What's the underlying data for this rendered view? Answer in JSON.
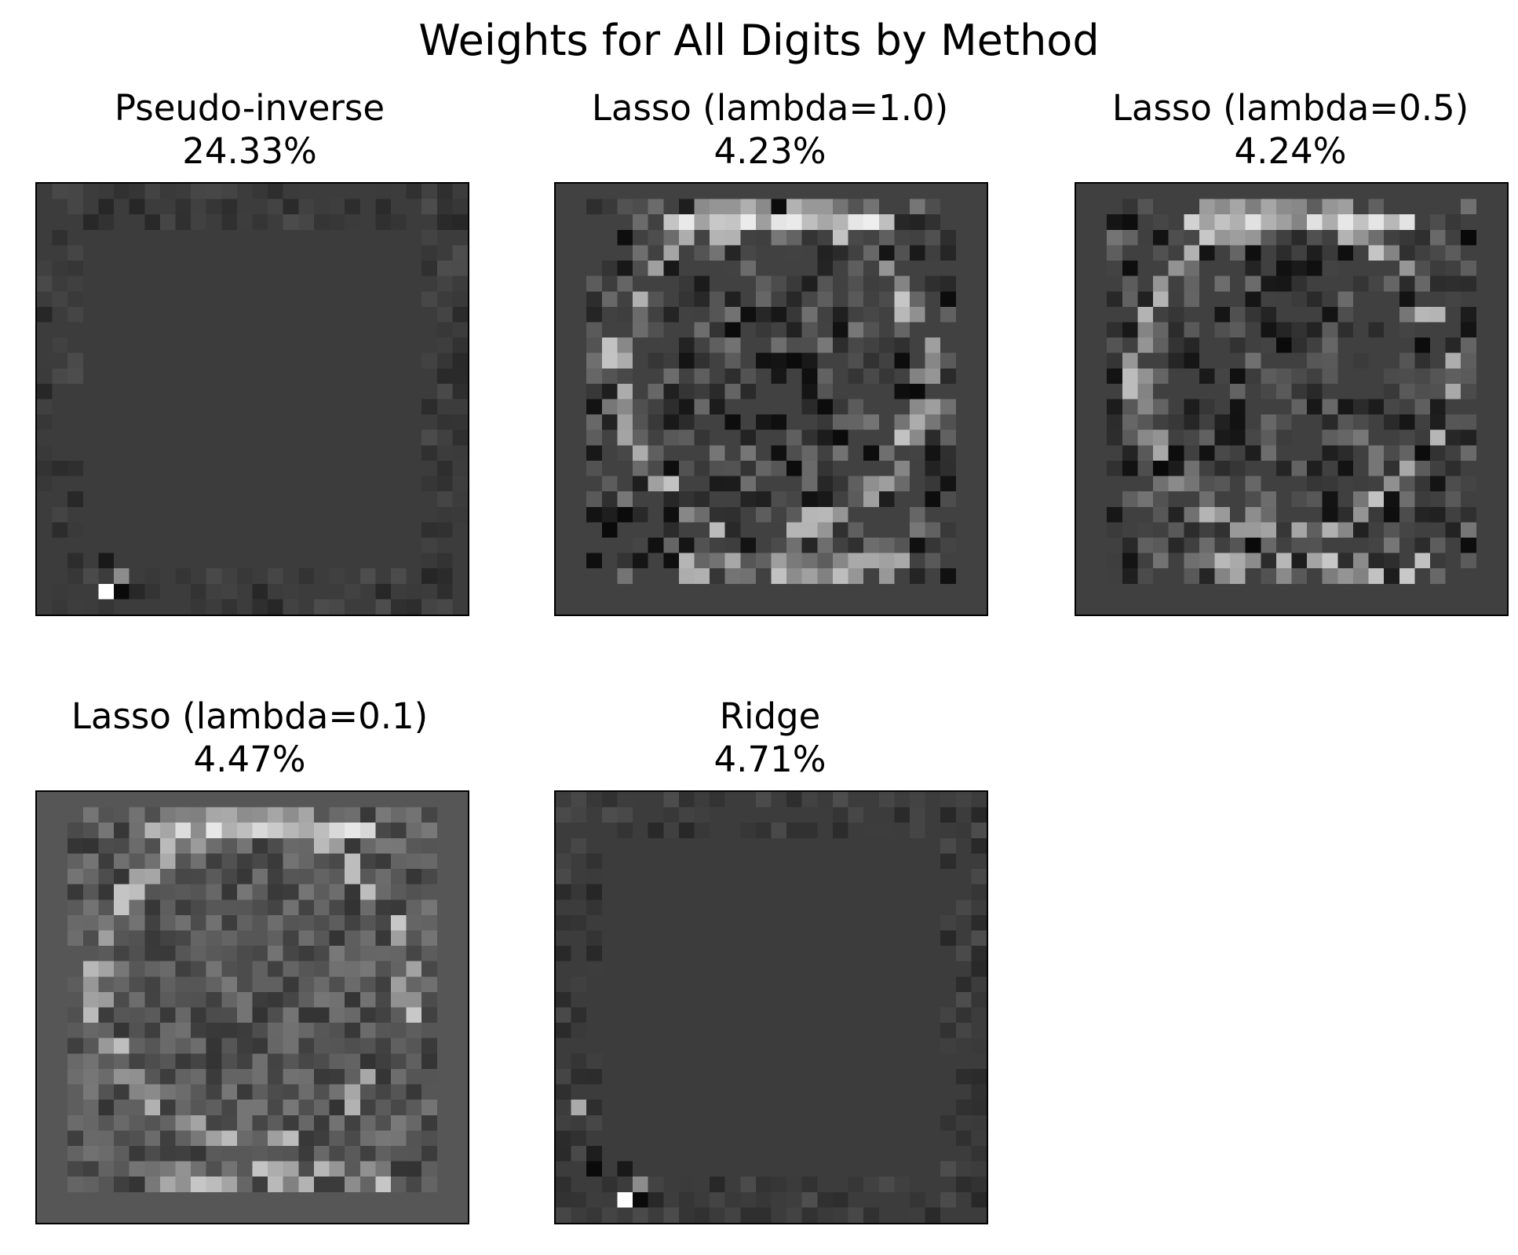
{
  "chart_data": {
    "type": "heatmap",
    "title": "Weights for All Digits by Method",
    "colormap": "gray",
    "panels": [
      {
        "method": "Pseudo-inverse",
        "value_text": "24.33%",
        "background": "#3c3c3c",
        "style": "border"
      },
      {
        "method": "Lasso (lambda=1.0)",
        "value_text": "4.23%",
        "background": "#414141",
        "style": "digit-sparse"
      },
      {
        "method": "Lasso (lambda=0.5)",
        "value_text": "4.24%",
        "background": "#404040",
        "style": "digit-sparse"
      },
      {
        "method": "Lasso (lambda=0.1)",
        "value_text": "4.47%",
        "background": "#565656",
        "style": "digit-dense"
      },
      {
        "method": "Ridge",
        "value_text": "4.71%",
        "background": "#3c3c3c",
        "style": "border"
      }
    ]
  }
}
